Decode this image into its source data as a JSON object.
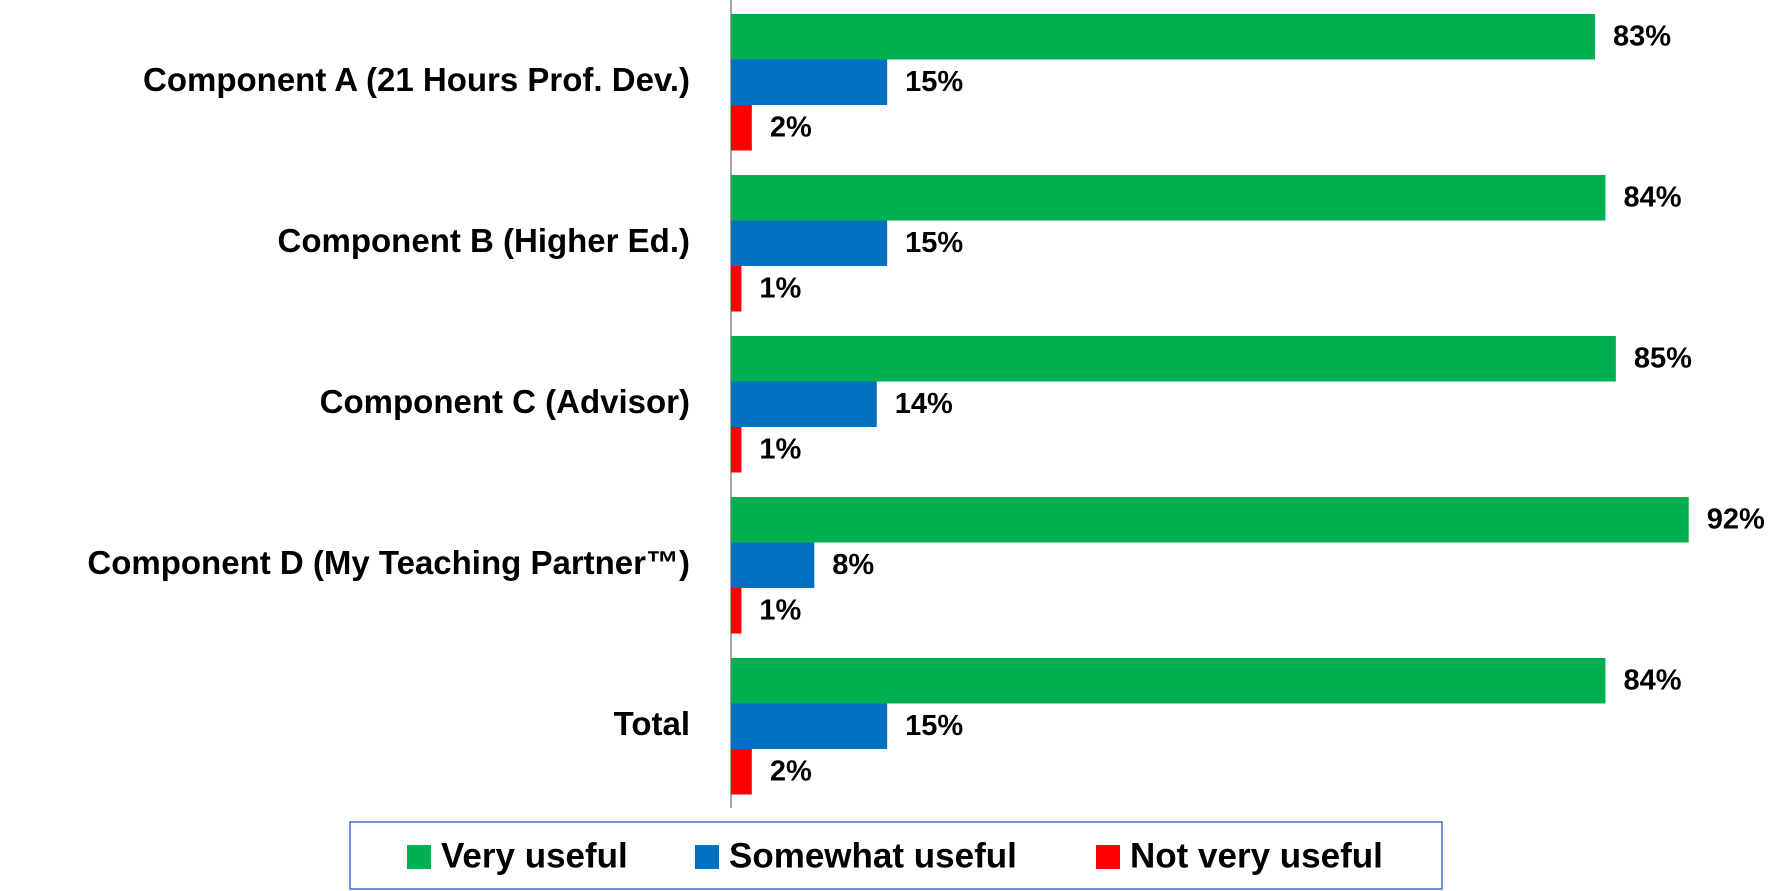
{
  "chart_data": {
    "type": "bar",
    "orientation": "horizontal",
    "categories": [
      "Component A (21 Hours Prof. Dev.)",
      "Component B (Higher Ed.)",
      "Component C (Advisor)",
      "Component D (My Teaching Partner™)",
      "Total"
    ],
    "series": [
      {
        "name": "Very useful",
        "color": "#00b050",
        "values": [
          83,
          84,
          85,
          92,
          84
        ],
        "value_labels": [
          "83%",
          "84%",
          "85%",
          "92%",
          "84%"
        ]
      },
      {
        "name": "Somewhat useful",
        "color": "#0070c0",
        "values": [
          15,
          15,
          14,
          8,
          15
        ],
        "value_labels": [
          "15%",
          "15%",
          "14%",
          "8%",
          "15%"
        ]
      },
      {
        "name": "Not very useful",
        "color": "#ff0000",
        "values": [
          2,
          1,
          1,
          1,
          2
        ],
        "value_labels": [
          "2%",
          "1%",
          "1%",
          "1%",
          "2%"
        ]
      }
    ],
    "xlim": [
      0,
      100
    ],
    "legend": "bottom"
  }
}
